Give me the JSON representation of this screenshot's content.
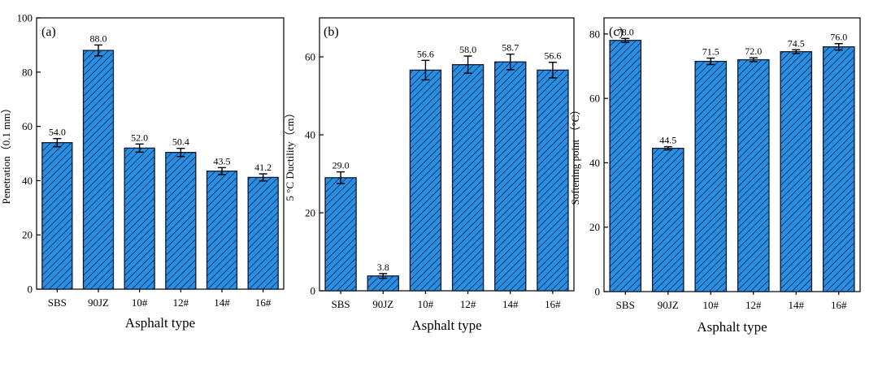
{
  "chart_data": [
    {
      "type": "bar",
      "panel_label": "(a)",
      "title": "",
      "xlabel": "Asphalt type",
      "ylabel": "Penetration（0.1 mm）",
      "categories": [
        "SBS",
        "90JZ",
        "10#",
        "12#",
        "14#",
        "16#"
      ],
      "values": [
        54.0,
        88.0,
        52.0,
        50.4,
        43.5,
        41.2
      ],
      "value_labels": [
        "54.0",
        "88.0",
        "52.0",
        "50.4",
        "43.5",
        "41.2"
      ],
      "errors": [
        1.5,
        2.0,
        1.5,
        1.5,
        1.3,
        1.3
      ],
      "ylim": [
        0,
        100
      ],
      "yticks": [
        0,
        20,
        40,
        60,
        80,
        100
      ],
      "ytick_labels": [
        "0",
        "20",
        "40",
        "60",
        "80",
        "100"
      ]
    },
    {
      "type": "bar",
      "panel_label": "(b)",
      "title": "",
      "xlabel": "Asphalt type",
      "ylabel": "5 °C Ductility（cm）",
      "categories": [
        "SBS",
        "90JZ",
        "10#",
        "12#",
        "14#",
        "16#"
      ],
      "values": [
        29.0,
        3.8,
        56.6,
        58.0,
        58.7,
        56.6
      ],
      "value_labels": [
        "29.0",
        "3.8",
        "56.6",
        "58.0",
        "58.7",
        "56.6"
      ],
      "errors": [
        1.5,
        0.6,
        2.5,
        2.2,
        2.0,
        2.0
      ],
      "ylim": [
        0,
        70
      ],
      "yticks": [
        0,
        20,
        40,
        60
      ],
      "ytick_labels": [
        "0",
        "20",
        "40",
        "60"
      ]
    },
    {
      "type": "bar",
      "panel_label": "(c)",
      "title": "",
      "xlabel": "Asphalt type",
      "ylabel": "Softening point （°C）",
      "categories": [
        "SBS",
        "90JZ",
        "10#",
        "12#",
        "14#",
        "16#"
      ],
      "values": [
        78.0,
        44.5,
        71.5,
        72.0,
        74.5,
        76.0
      ],
      "value_labels": [
        "78.0",
        "44.5",
        "71.5",
        "72.0",
        "74.5",
        "76.0"
      ],
      "errors": [
        0.6,
        0.5,
        1.0,
        0.6,
        0.6,
        1.0
      ],
      "ylim": [
        0,
        85
      ],
      "yticks": [
        0,
        20,
        40,
        60,
        80
      ],
      "ytick_labels": [
        "0",
        "20",
        "40",
        "60",
        "80"
      ]
    }
  ],
  "colors": {
    "bar_fill": "#2a8fe0",
    "bar_hatch": "#12285a",
    "bar_edge": "#0d1a33",
    "axis": "#000000"
  }
}
